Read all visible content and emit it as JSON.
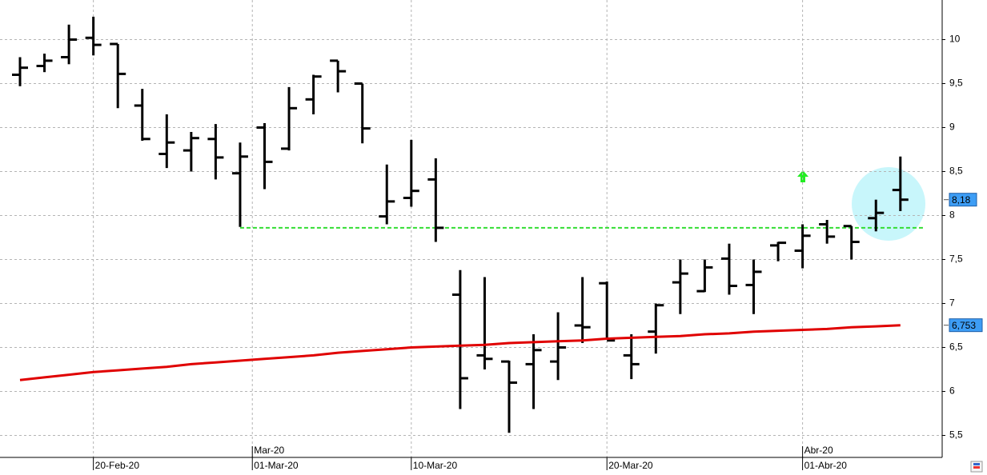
{
  "chart_data": {
    "type": "ohlc",
    "categories": [
      null,
      null,
      null,
      null,
      null,
      null,
      null,
      null,
      null,
      null,
      null,
      null,
      null,
      null,
      null,
      null,
      null,
      null,
      null,
      null,
      null,
      null,
      null,
      null,
      null,
      null,
      null,
      null,
      null,
      null,
      null,
      null,
      null,
      null,
      null,
      null,
      null
    ],
    "series": [
      {
        "color": "#000000",
        "open": [
          9.6,
          9.7,
          9.8,
          10.02,
          9.95,
          9.25,
          8.7,
          8.74,
          8.87,
          8.48,
          9.0,
          8.76,
          9.32,
          9.76,
          9.5,
          7.99,
          8.2,
          8.41,
          7.1,
          6.41,
          6.34,
          6.31,
          6.34,
          6.75,
          7.23,
          6.41,
          6.68,
          7.24,
          7.14,
          7.51,
          7.21,
          7.66,
          7.6,
          7.9,
          7.88,
          7.97,
          8.29
        ],
        "high": [
          9.8,
          9.84,
          10.17,
          10.26,
          9.95,
          9.44,
          9.15,
          8.95,
          9.04,
          8.83,
          9.05,
          9.46,
          9.6,
          9.76,
          9.5,
          8.58,
          8.86,
          8.65,
          7.38,
          7.3,
          6.35,
          6.65,
          6.9,
          7.3,
          7.25,
          6.65,
          7.0,
          7.5,
          7.5,
          7.68,
          7.5,
          7.7,
          7.9,
          7.95,
          7.88,
          8.18,
          8.67
        ],
        "low": [
          9.47,
          9.63,
          9.72,
          9.82,
          9.22,
          8.85,
          8.54,
          8.5,
          8.41,
          7.87,
          8.3,
          8.74,
          9.15,
          9.4,
          8.82,
          7.9,
          8.1,
          7.7,
          5.8,
          6.25,
          5.53,
          5.8,
          6.13,
          6.55,
          6.6,
          6.14,
          6.43,
          6.88,
          7.13,
          7.1,
          6.88,
          7.48,
          7.4,
          7.68,
          7.5,
          7.82,
          8.05
        ],
        "close": [
          9.68,
          9.76,
          10.0,
          9.94,
          9.61,
          8.87,
          8.83,
          8.88,
          8.66,
          8.67,
          8.61,
          9.22,
          9.58,
          9.64,
          8.99,
          8.16,
          8.28,
          7.86,
          6.15,
          6.37,
          6.1,
          6.47,
          6.5,
          6.73,
          6.58,
          6.31,
          6.98,
          7.34,
          7.41,
          7.2,
          7.36,
          7.69,
          7.77,
          7.76,
          7.7,
          8.03,
          8.18
        ],
        "last_price": {
          "value": 8.18,
          "label": "8,18"
        }
      },
      {
        "type": "line",
        "color": "#e00000",
        "values": [
          6.13,
          6.16,
          6.19,
          6.22,
          6.24,
          6.26,
          6.28,
          6.31,
          6.33,
          6.35,
          6.37,
          6.39,
          6.41,
          6.44,
          6.46,
          6.48,
          6.5,
          6.51,
          6.52,
          6.53,
          6.55,
          6.56,
          6.57,
          6.58,
          6.6,
          6.61,
          6.62,
          6.63,
          6.65,
          6.66,
          6.68,
          6.69,
          6.7,
          6.71,
          6.73,
          6.74,
          6.753
        ],
        "last_price": {
          "value": 6.753,
          "label": "6,753"
        }
      }
    ],
    "support_line": {
      "value": 7.86,
      "start_category": 9,
      "color": "#33dd33"
    },
    "ylim": [
      5.25,
      10.45
    ],
    "yticks": [
      {
        "value": 5.5,
        "label": "5,5"
      },
      6,
      {
        "value": 6.5,
        "label": "6,5"
      },
      7,
      {
        "value": 7.5,
        "label": "7,5"
      },
      8,
      {
        "value": 8.5,
        "label": "8,5"
      },
      9,
      {
        "value": 9.5,
        "label": "9,5"
      },
      10
    ],
    "xticks": [
      {
        "value": 3,
        "label": "20-Feb-20"
      },
      {
        "value": 9.5,
        "label": "01-Mar-20"
      },
      {
        "value": 16,
        "label": "10-Mar-20"
      },
      {
        "value": 24,
        "label": "20-Mar-20"
      },
      {
        "value": 32,
        "label": "01-Abr-20"
      }
    ],
    "month_labels": [
      {
        "value": 9.5,
        "label": "Mar-20"
      },
      {
        "value": 32,
        "label": "Abr-20"
      }
    ],
    "grid": true
  }
}
